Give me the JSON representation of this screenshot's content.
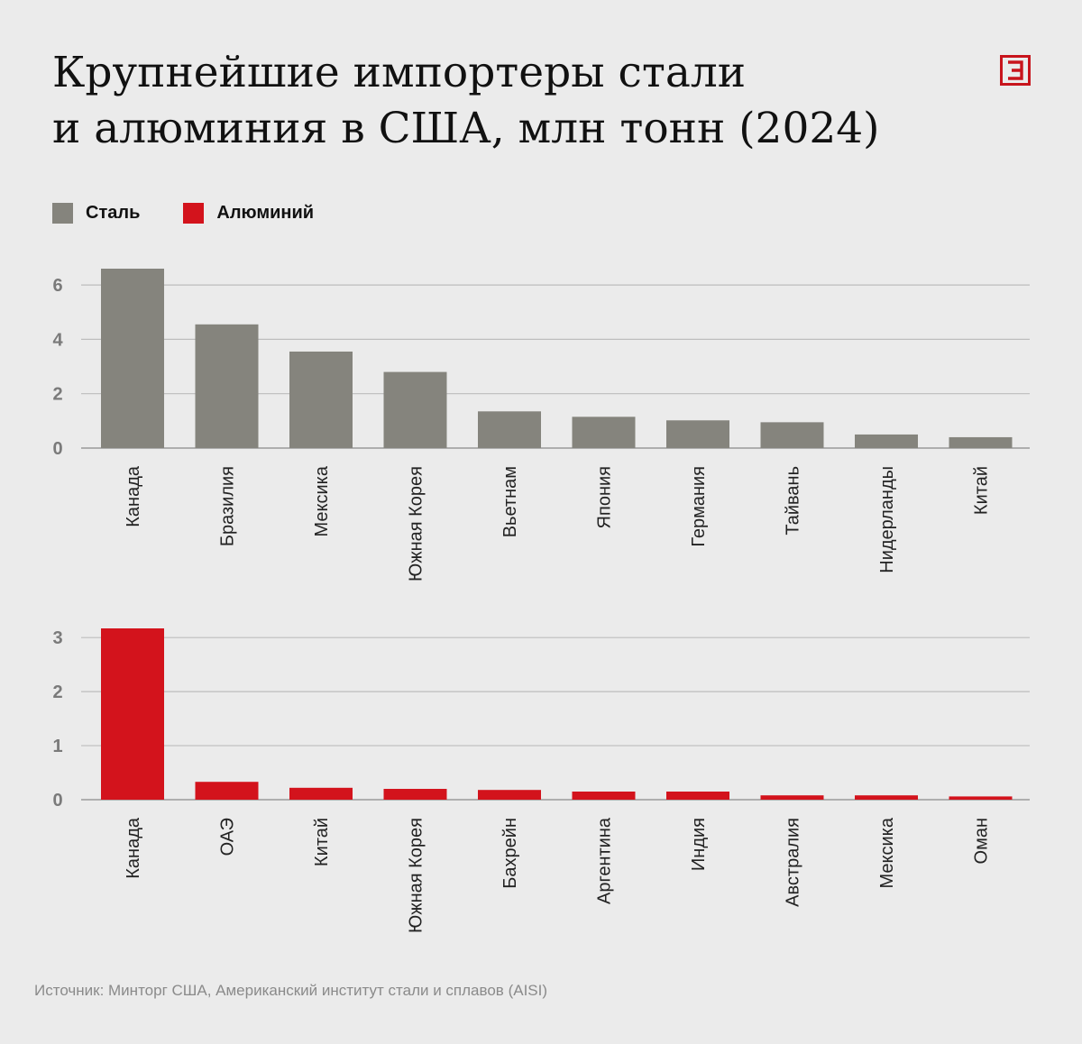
{
  "title_line1": "Крупнейшие импортеры стали",
  "title_line2": "и алюминия в США, млн тонн (2024)",
  "logo": {
    "glyph": "Э",
    "color": "#c8141c"
  },
  "legend": [
    {
      "label": "Сталь",
      "color": "#85847d"
    },
    {
      "label": "Алюминий",
      "color": "#d3131c"
    }
  ],
  "source": "Источник: Минторг США, Американский институт стали и сплавов (AISI)",
  "chart_data": [
    {
      "type": "bar",
      "series_name": "Сталь",
      "color": "#85847d",
      "categories": [
        "Канада",
        "Бразилия",
        "Мексика",
        "Южная Корея",
        "Вьетнам",
        "Япония",
        "Германия",
        "Тайвань",
        "Нидерланды",
        "Китай"
      ],
      "values": [
        6.6,
        4.55,
        3.55,
        2.8,
        1.35,
        1.15,
        1.02,
        0.95,
        0.5,
        0.4
      ],
      "yticks": [
        0,
        2,
        4,
        6
      ],
      "ylim": [
        0,
        6.6
      ],
      "grid": true
    },
    {
      "type": "bar",
      "series_name": "Алюминий",
      "color": "#d3131c",
      "categories": [
        "Канада",
        "ОАЭ",
        "Китай",
        "Южная Корея",
        "Бахрейн",
        "Аргентина",
        "Индия",
        "Австралия",
        "Мексика",
        "Оман"
      ],
      "values": [
        3.17,
        0.33,
        0.22,
        0.2,
        0.18,
        0.15,
        0.15,
        0.08,
        0.08,
        0.06
      ],
      "yticks": [
        0,
        1,
        2,
        3
      ],
      "ylim": [
        0,
        3.17
      ],
      "grid": true
    }
  ]
}
